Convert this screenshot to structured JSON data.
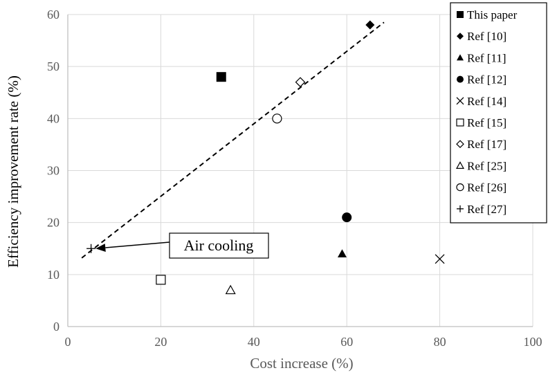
{
  "chart_data": {
    "type": "scatter",
    "xlabel": "Cost increase (%)",
    "ylabel": "Efficiency improvement rate (%)",
    "xlim": [
      0,
      100
    ],
    "ylim": [
      0,
      60
    ],
    "x_ticks": [
      "0",
      "20",
      "40",
      "60",
      "80",
      "100"
    ],
    "y_ticks": [
      "0",
      "10",
      "20",
      "30",
      "40",
      "50",
      "60"
    ],
    "grid": true,
    "legend_position": "top-right",
    "series": [
      {
        "name": "This paper",
        "marker": "square-filled",
        "x": [
          33
        ],
        "y": [
          48
        ]
      },
      {
        "name": "Ref [10]",
        "marker": "diamond-filled",
        "x": [
          65
        ],
        "y": [
          58
        ]
      },
      {
        "name": "Ref [11]",
        "marker": "triangle-filled",
        "x": [
          59
        ],
        "y": [
          14
        ]
      },
      {
        "name": "Ref [12]",
        "marker": "circle-filled",
        "x": [
          60
        ],
        "y": [
          21
        ]
      },
      {
        "name": "Ref [14]",
        "marker": "cross",
        "x": [
          80
        ],
        "y": [
          13
        ]
      },
      {
        "name": "Ref [15]",
        "marker": "square-open",
        "x": [
          20
        ],
        "y": [
          9
        ]
      },
      {
        "name": "Ref [17]",
        "marker": "diamond-open",
        "x": [
          50
        ],
        "y": [
          47
        ]
      },
      {
        "name": "Ref [25]",
        "marker": "triangle-open",
        "x": [
          35
        ],
        "y": [
          7
        ]
      },
      {
        "name": "Ref [26]",
        "marker": "circle-open",
        "x": [
          45
        ],
        "y": [
          40
        ]
      },
      {
        "name": "Ref [27]",
        "marker": "plus",
        "x": [
          5
        ],
        "y": [
          15
        ]
      }
    ],
    "trendline": {
      "style": "dashed",
      "x": [
        3,
        68
      ],
      "y": [
        13.2,
        58.5
      ]
    },
    "annotations": [
      {
        "text": "Air cooling",
        "arrow_to": {
          "x": 6,
          "y": 15
        }
      }
    ]
  }
}
